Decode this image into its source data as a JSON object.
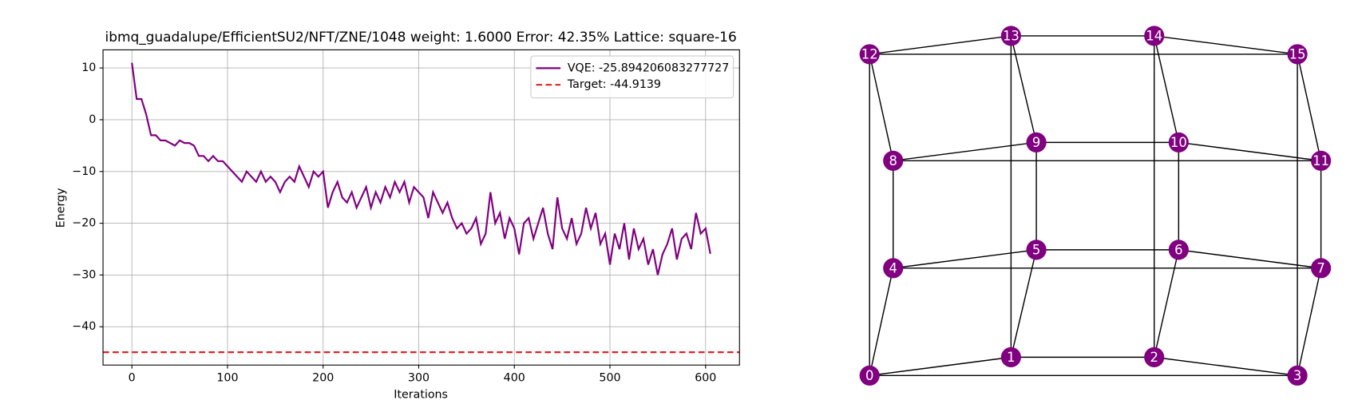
{
  "chart_data": {
    "type": "line",
    "title": "ibmq_guadalupe/EfficientSU2/NFT/ZNE/1048 weight: 1.6000 Error: 42.35% Lattice: square-16",
    "xlabel": "Iterations",
    "ylabel": "Energy",
    "x": [
      0,
      5,
      10,
      15,
      20,
      25,
      30,
      35,
      40,
      45,
      50,
      55,
      60,
      65,
      70,
      75,
      80,
      85,
      90,
      95,
      100,
      105,
      110,
      115,
      120,
      125,
      130,
      135,
      140,
      145,
      150,
      155,
      160,
      165,
      170,
      175,
      180,
      185,
      190,
      195,
      200,
      205,
      210,
      215,
      220,
      225,
      230,
      235,
      240,
      245,
      250,
      255,
      260,
      265,
      270,
      275,
      280,
      285,
      290,
      295,
      300,
      305,
      310,
      315,
      320,
      325,
      330,
      335,
      340,
      345,
      350,
      355,
      360,
      365,
      370,
      375,
      380,
      385,
      390,
      395,
      400,
      405,
      410,
      415,
      420,
      425,
      430,
      435,
      440,
      445,
      450,
      455,
      460,
      465,
      470,
      475,
      480,
      485,
      490,
      495,
      500,
      505,
      510,
      515,
      520,
      525,
      530,
      535,
      540,
      545,
      550,
      555,
      560,
      565,
      570,
      575,
      580,
      585,
      590,
      595,
      600,
      605
    ],
    "series": [
      {
        "name": "VQE: -25.894206083277727",
        "color": "#800080",
        "values": [
          11,
          4,
          4,
          1,
          -3,
          -3,
          -4,
          -4,
          -4.5,
          -5,
          -4,
          -4.5,
          -4.5,
          -5,
          -7,
          -7,
          -8,
          -7,
          -8,
          -8,
          -9,
          -10,
          -11,
          -12,
          -10,
          -11,
          -12,
          -10,
          -12,
          -11,
          -12,
          -14,
          -12,
          -11,
          -12,
          -9,
          -11,
          -13,
          -10,
          -11,
          -10,
          -17,
          -14,
          -12,
          -15,
          -16,
          -14,
          -17,
          -15,
          -13,
          -17,
          -14,
          -16,
          -13,
          -15,
          -12,
          -14,
          -12,
          -16,
          -13,
          -14,
          -15,
          -19,
          -14,
          -16,
          -18,
          -16,
          -19,
          -21,
          -20,
          -22,
          -21,
          -19,
          -24,
          -22,
          -14,
          -20,
          -18,
          -23,
          -19,
          -21,
          -26,
          -20,
          -19,
          -23,
          -20,
          -17,
          -22,
          -25,
          -15,
          -21,
          -23,
          -19,
          -24,
          -22,
          -17,
          -21,
          -18,
          -24,
          -22,
          -28,
          -22,
          -25,
          -20,
          -27,
          -21,
          -25,
          -23,
          -28,
          -25,
          -30,
          -26,
          -24,
          -21,
          -27,
          -23,
          -22,
          -25,
          -18,
          -22,
          -21,
          -25.894206083277727
        ]
      }
    ],
    "hlines": [
      {
        "name": "Target: -44.9139",
        "value": -44.9139,
        "color": "#d62728",
        "style": "dashed"
      }
    ],
    "xlim": [
      -30.2,
      635.5
    ],
    "ylim": [
      -47.4,
      13.5
    ],
    "xticks": [
      0,
      100,
      200,
      300,
      400,
      500,
      600
    ],
    "yticks": [
      {
        "value": -40,
        "label": "−40"
      },
      {
        "value": -30,
        "label": "−30"
      },
      {
        "value": -20,
        "label": "−20"
      },
      {
        "value": -10,
        "label": "−10"
      },
      0,
      10
    ],
    "grid": true,
    "legend": "upper right"
  },
  "lattice": {
    "nodes": [
      "0",
      "1",
      "2",
      "3",
      "4",
      "5",
      "6",
      "7",
      "8",
      "9",
      "10",
      "11",
      "12",
      "13",
      "14",
      "15"
    ],
    "node_color": "#800080"
  }
}
